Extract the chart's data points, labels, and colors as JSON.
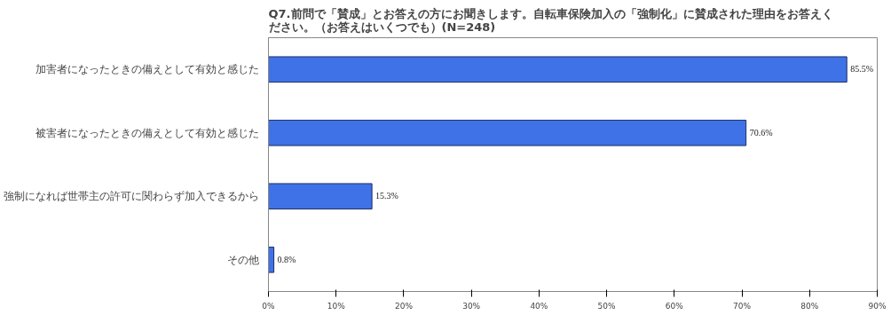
{
  "chart_data": {
    "type": "bar",
    "orientation": "horizontal",
    "title": "Q7.前問で「賛成」とお答えの方にお聞きします。自転車保険加入の「強制化」に賛成された理由をお答えください。（お答えはいくつでも）(N=248)",
    "categories": [
      "加害者になったときの備えとして有効と感じた",
      "被害者になったときの備えとして有効と感じた",
      "強制になれば世帯主の許可に関わらず加入できるから",
      "その他"
    ],
    "values": [
      85.5,
      70.6,
      15.3,
      0.8
    ],
    "value_labels": [
      "85.5%",
      "70.6%",
      "15.3%",
      "0.8%"
    ],
    "color": "#3f72e6",
    "xlim": [
      0,
      90
    ],
    "xticks": [
      {
        "value": 0,
        "label": "0%"
      },
      {
        "value": 10,
        "label": "10%"
      },
      {
        "value": 20,
        "label": "20%"
      },
      {
        "value": 30,
        "label": "30%"
      },
      {
        "value": 40,
        "label": "40%"
      },
      {
        "value": 50,
        "label": "50%"
      },
      {
        "value": 60,
        "label": "60%"
      },
      {
        "value": 70,
        "label": "70%"
      },
      {
        "value": 80,
        "label": "80%"
      },
      {
        "value": 90,
        "label": "90%"
      }
    ],
    "grid": false
  }
}
